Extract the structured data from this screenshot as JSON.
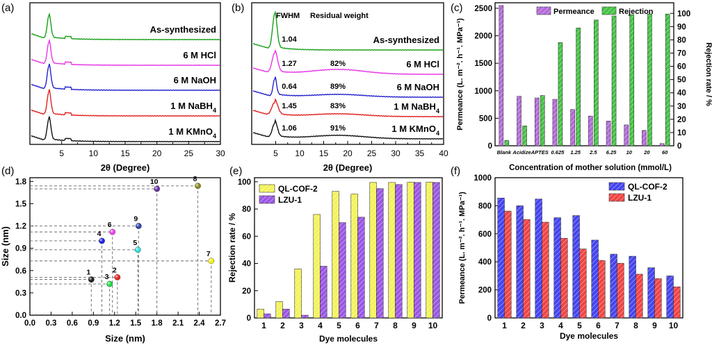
{
  "colors": {
    "green": "#18a018",
    "magenta": "#e636e6",
    "blue": "#2222cc",
    "red": "#e02020",
    "black": "#111111",
    "purple": "#b36ad9",
    "bar_green": "#44c244",
    "yellow": "#f3f35a",
    "violet": "#9b55e6",
    "qlblue": "#4444f0",
    "lzured": "#f04444"
  },
  "chart_data": [
    {
      "id": "a",
      "panel_label": "(a)",
      "type": "line",
      "xlabel": "2θ (Degree)",
      "ylabel": "",
      "xlim": [
        0,
        30
      ],
      "xticks": [
        5,
        10,
        15,
        20,
        25,
        30
      ],
      "series": [
        {
          "name": "As-synthesized",
          "color": "#18a018",
          "peak_x": 3.0,
          "residual": ""
        },
        {
          "name": "6 M HCl",
          "color": "#e636e6",
          "peak_x": 3.0,
          "residual": ""
        },
        {
          "name": "6 M NaOH",
          "color": "#2222cc",
          "peak_x": 3.0,
          "residual": ""
        },
        {
          "name": "1 M NaBH",
          "sub": "4",
          "color": "#e02020",
          "peak_x": 3.0,
          "residual": ""
        },
        {
          "name": "1 M KMnO",
          "sub": "4",
          "color": "#111111",
          "peak_x": 3.0,
          "residual": ""
        }
      ]
    },
    {
      "id": "b",
      "panel_label": "(b)",
      "type": "line",
      "xlabel": "2θ (Degree)",
      "ylabel": "",
      "xlim": [
        0,
        40
      ],
      "xticks": [
        5,
        10,
        15,
        20,
        25,
        30,
        35,
        40
      ],
      "header": [
        "FWHM",
        "Residual weight"
      ],
      "series": [
        {
          "name": "As-synthesized",
          "color": "#18a018",
          "fwhm": "1.04",
          "residual": ""
        },
        {
          "name": "6 M HCl",
          "color": "#e636e6",
          "fwhm": "1.27",
          "residual": "82%"
        },
        {
          "name": "6 M NaOH",
          "color": "#2222cc",
          "fwhm": "0.64",
          "residual": "89%"
        },
        {
          "name": "1 M NaBH",
          "sub": "4",
          "color": "#e02020",
          "fwhm": "1.45",
          "residual": "83%"
        },
        {
          "name": "1 M KMnO",
          "sub": "4",
          "color": "#111111",
          "fwhm": "1.06",
          "residual": "91%"
        }
      ]
    },
    {
      "id": "c",
      "panel_label": "(c)",
      "type": "bar",
      "xlabel": "Concentration of mother solution (mmol/L)",
      "ylabel_left": "Permeance (L. m⁻². h⁻¹. MPa⁻¹)",
      "ylabel_right": "Rejection rate / %",
      "ylim_left": [
        0,
        2600
      ],
      "yticks_left": [
        0,
        500,
        1000,
        1500,
        2000,
        2500
      ],
      "ylim_right": [
        0,
        108
      ],
      "yticks_right": [
        0,
        10,
        20,
        30,
        40,
        50,
        60,
        70,
        80,
        90,
        100
      ],
      "categories": [
        "Blank",
        "Acidize",
        "APTES",
        "0.625",
        "1.25",
        "2.5",
        "6.25",
        "10",
        "20",
        "60"
      ],
      "series": [
        {
          "name": "Permeance",
          "axis": "left",
          "color": "#b36ad9",
          "values": [
            2550,
            900,
            870,
            845,
            660,
            540,
            450,
            380,
            280,
            40
          ]
        },
        {
          "name": "Rejection",
          "axis": "right",
          "color": "#44c244",
          "values": [
            4,
            15,
            38,
            78,
            89,
            95,
            98,
            99,
            99.5,
            99.5
          ]
        }
      ]
    },
    {
      "id": "d",
      "panel_label": "(d)",
      "type": "scatter",
      "xlabel": "Size (nm)",
      "ylabel": "Size (nm)",
      "xlim": [
        0,
        2.7
      ],
      "xticks": [
        "0.0",
        "0.3",
        "0.6",
        "0.9",
        "1.2",
        "1.5",
        "1.8",
        "2.1",
        "2.4",
        "2.7"
      ],
      "ylim": [
        0,
        1.85
      ],
      "yticks": [
        "0.0",
        "0.3",
        "0.6",
        "0.9",
        "1.2",
        "1.5",
        "1.8"
      ],
      "points": [
        {
          "label": "1",
          "x": 0.87,
          "y": 0.48,
          "color": "#222222"
        },
        {
          "label": "2",
          "x": 1.24,
          "y": 0.51,
          "color": "#ee2020"
        },
        {
          "label": "3",
          "x": 1.13,
          "y": 0.42,
          "color": "#22dd44"
        },
        {
          "label": "4",
          "x": 1.02,
          "y": 1.0,
          "color": "#2222ee"
        },
        {
          "label": "5",
          "x": 1.53,
          "y": 0.88,
          "color": "#33dddd"
        },
        {
          "label": "6",
          "x": 1.17,
          "y": 1.12,
          "color": "#ee44ee"
        },
        {
          "label": "7",
          "x": 2.57,
          "y": 0.73,
          "color": "#f2f222"
        },
        {
          "label": "8",
          "x": 2.38,
          "y": 1.74,
          "color": "#8b8b22"
        },
        {
          "label": "9",
          "x": 1.54,
          "y": 1.2,
          "color": "#3344aa"
        },
        {
          "label": "10",
          "x": 1.8,
          "y": 1.7,
          "color": "#6633aa"
        }
      ]
    },
    {
      "id": "e",
      "panel_label": "(e)",
      "type": "bar",
      "xlabel": "Dye molecules",
      "ylabel": "Rejection rate / %",
      "ylim": [
        0,
        103
      ],
      "yticks": [
        0,
        20,
        40,
        60,
        80,
        100
      ],
      "categories": [
        "1",
        "2",
        "3",
        "4",
        "5",
        "6",
        "7",
        "8",
        "9",
        "10"
      ],
      "series": [
        {
          "name": "QL-COF-2",
          "color": "#f3f35a",
          "values": [
            6.5,
            12,
            36,
            76,
            93,
            91,
            99.5,
            99.5,
            99.8,
            99.8
          ]
        },
        {
          "name": "LZU-1",
          "color": "#9b55e6",
          "values": [
            3,
            6.5,
            2,
            38,
            70,
            74,
            95,
            98,
            99.5,
            99.5
          ]
        }
      ]
    },
    {
      "id": "f",
      "panel_label": "(f)",
      "type": "bar",
      "xlabel": "Dye molecules",
      "ylabel": "Permeance (L. m⁻². h⁻¹. MPa⁻¹)",
      "ylim": [
        0,
        1000
      ],
      "yticks": [
        0,
        200,
        400,
        600,
        800,
        1000
      ],
      "categories": [
        "1",
        "2",
        "3",
        "4",
        "5",
        "6",
        "7",
        "8",
        "9",
        "10"
      ],
      "series": [
        {
          "name": "QL-COF-2",
          "color": "#4444f0",
          "values": [
            855,
            800,
            848,
            715,
            730,
            555,
            455,
            440,
            358,
            300
          ]
        },
        {
          "name": "LZU-1",
          "color": "#f04444",
          "values": [
            762,
            702,
            683,
            568,
            492,
            410,
            390,
            312,
            280,
            222
          ]
        }
      ]
    }
  ]
}
